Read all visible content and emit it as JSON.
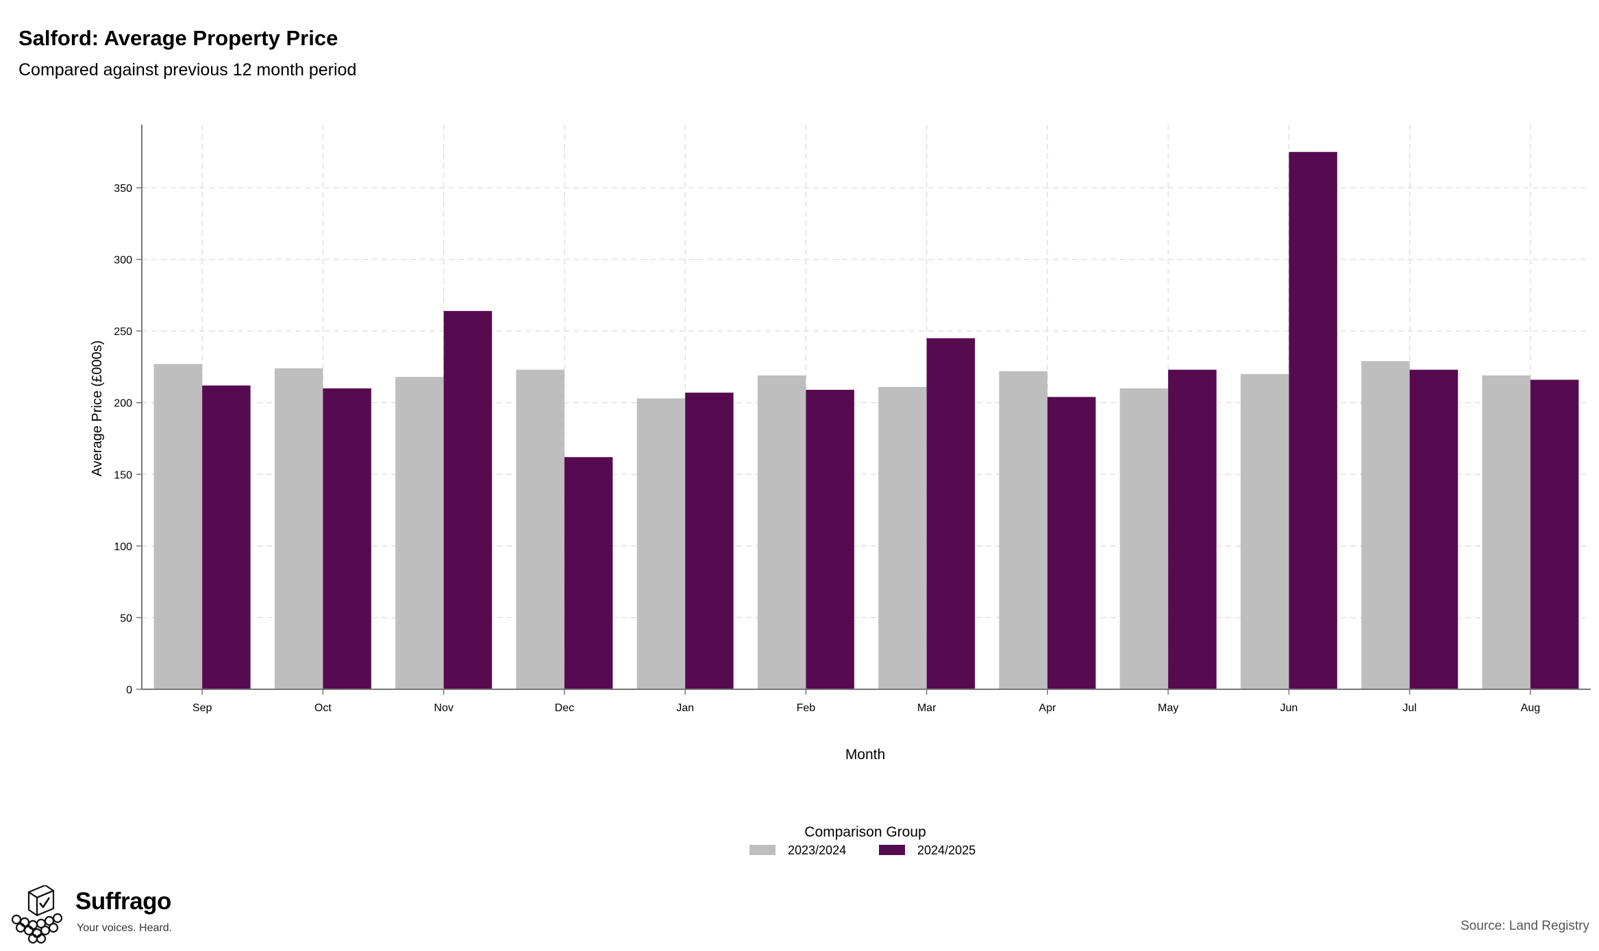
{
  "header": {
    "title": "Salford: Average Property Price",
    "subtitle": "Compared against previous 12 month period"
  },
  "chart_data": {
    "type": "bar",
    "categories": [
      "Sep",
      "Oct",
      "Nov",
      "Dec",
      "Jan",
      "Feb",
      "Mar",
      "Apr",
      "May",
      "Jun",
      "Jul",
      "Aug"
    ],
    "series": [
      {
        "name": "2023/2024",
        "color": "#bebebe",
        "values": [
          227,
          224,
          218,
          223,
          203,
          219,
          211,
          222,
          210,
          220,
          229,
          219
        ]
      },
      {
        "name": "2024/2025",
        "color": "#560b51",
        "values": [
          212,
          210,
          264,
          162,
          207,
          209,
          245,
          204,
          223,
          375,
          223,
          216
        ]
      }
    ],
    "xlabel": "Month",
    "ylabel": "Average Price (£000s)",
    "ylim": [
      0,
      394
    ],
    "yticks": [
      0,
      50,
      100,
      150,
      200,
      250,
      300,
      350
    ],
    "grid": true,
    "legend": {
      "title": "Comparison Group",
      "position": "bottom"
    }
  },
  "brand": {
    "name": "Suffrago",
    "tagline": "Your voices. Heard.",
    "icon": "ballot-box-icon"
  },
  "footer": {
    "source": "Source: Land Registry"
  }
}
